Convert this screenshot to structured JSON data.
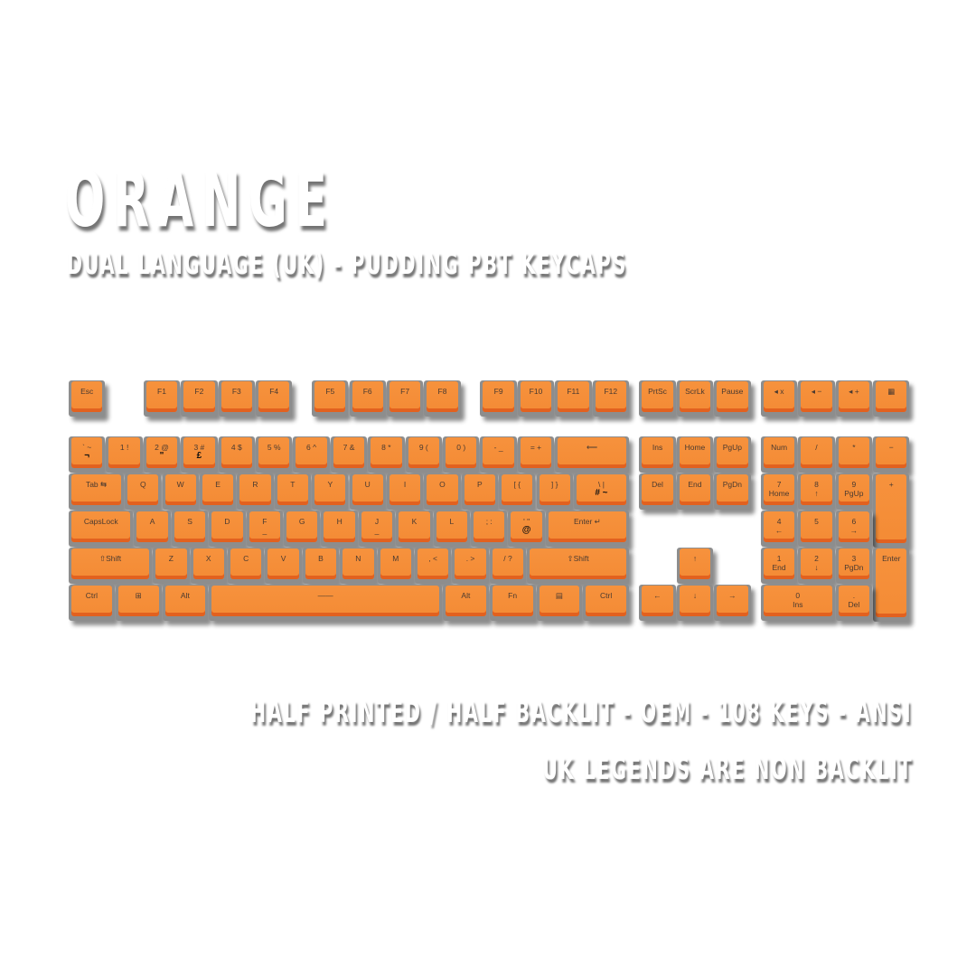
{
  "title": "ORANGE",
  "subtitle": "DUAL LANGUAGE (UK) - PUDDING PBT KEYCAPS",
  "notes": [
    "HALF PRINTED / HALF BACKLIT - OEM - 108 KEYS - ANSI",
    "UK LEGENDS ARE NON BACKLIT"
  ],
  "colors": {
    "keycap": "#f5903a",
    "keycap_edge": "#e2611f",
    "bezel": "#8d8d8d",
    "background": "#ffffff"
  },
  "icons": {
    "mute": "speaker-mute-icon",
    "vol_down": "volume-down-icon",
    "vol_up": "volume-up-icon",
    "calc": "calculator-icon",
    "win": "windows-icon",
    "menu": "menu-icon"
  },
  "keyboard": {
    "rows": [
      [
        [
          "Esc"
        ],
        [
          "F1"
        ],
        [
          "F2"
        ],
        [
          "F3"
        ],
        [
          "F4"
        ],
        [
          "F5"
        ],
        [
          "F6"
        ],
        [
          "F7"
        ],
        [
          "F8"
        ],
        [
          "F9"
        ],
        [
          "F10"
        ],
        [
          "F11"
        ],
        [
          "F12"
        ],
        [
          "PrtSc"
        ],
        [
          "ScrLk"
        ],
        [
          "Pause"
        ],
        [
          "◂ x"
        ],
        [
          "◂ −"
        ],
        [
          "◂ +"
        ],
        [
          "▦"
        ]
      ],
      [
        [
          "` ~",
          "¬"
        ],
        [
          "1 !"
        ],
        [
          "2 @",
          "\""
        ],
        [
          "3 #",
          "£"
        ],
        [
          "4 $"
        ],
        [
          "5 %"
        ],
        [
          "6 ^"
        ],
        [
          "7 &"
        ],
        [
          "8 *"
        ],
        [
          "9 ("
        ],
        [
          "0 )"
        ],
        [
          "- _"
        ],
        [
          "= +"
        ],
        [
          "⟵"
        ],
        [
          "Ins"
        ],
        [
          "Home"
        ],
        [
          "PgUp"
        ],
        [
          "Num"
        ],
        [
          "/"
        ],
        [
          "*"
        ],
        [
          "−"
        ]
      ],
      [
        [
          "Tab ⇆"
        ],
        [
          "Q"
        ],
        [
          "W"
        ],
        [
          "E"
        ],
        [
          "R"
        ],
        [
          "T"
        ],
        [
          "Y"
        ],
        [
          "U"
        ],
        [
          "I"
        ],
        [
          "O"
        ],
        [
          "P"
        ],
        [
          "[ {"
        ],
        [
          "] }"
        ],
        [
          "\\ |",
          "# ~"
        ],
        [
          "Del"
        ],
        [
          "End"
        ],
        [
          "PgDn"
        ],
        [
          "7",
          "Home"
        ],
        [
          "8",
          "↑"
        ],
        [
          "9",
          "PgUp"
        ],
        [
          "+"
        ]
      ],
      [
        [
          "CapsLock"
        ],
        [
          "A"
        ],
        [
          "S"
        ],
        [
          "D"
        ],
        [
          "F",
          "_"
        ],
        [
          "G"
        ],
        [
          "H"
        ],
        [
          "J",
          "_"
        ],
        [
          "K"
        ],
        [
          "L"
        ],
        [
          "; :"
        ],
        [
          "' \"",
          "@"
        ],
        [
          "Enter ↵"
        ],
        [
          "4",
          "←"
        ],
        [
          "5"
        ],
        [
          "6",
          "→"
        ]
      ],
      [
        [
          "⇧Shift"
        ],
        [
          "Z"
        ],
        [
          "X"
        ],
        [
          "C"
        ],
        [
          "V"
        ],
        [
          "B"
        ],
        [
          "N"
        ],
        [
          "M"
        ],
        [
          ", <"
        ],
        [
          ". >"
        ],
        [
          "/ ?"
        ],
        [
          "⇧Shift"
        ],
        [
          "↑"
        ],
        [
          "1",
          "End"
        ],
        [
          "2",
          "↓"
        ],
        [
          "3",
          "PgDn"
        ],
        [
          "Enter"
        ]
      ],
      [
        [
          "Ctrl"
        ],
        [
          "⊞"
        ],
        [
          "Alt"
        ],
        [
          "——"
        ],
        [
          "Alt"
        ],
        [
          "Fn"
        ],
        [
          "▤"
        ],
        [
          "Ctrl"
        ],
        [
          "←"
        ],
        [
          "↓"
        ],
        [
          "→"
        ],
        [
          "0",
          "Ins"
        ],
        [
          ".",
          "Del"
        ]
      ]
    ]
  }
}
